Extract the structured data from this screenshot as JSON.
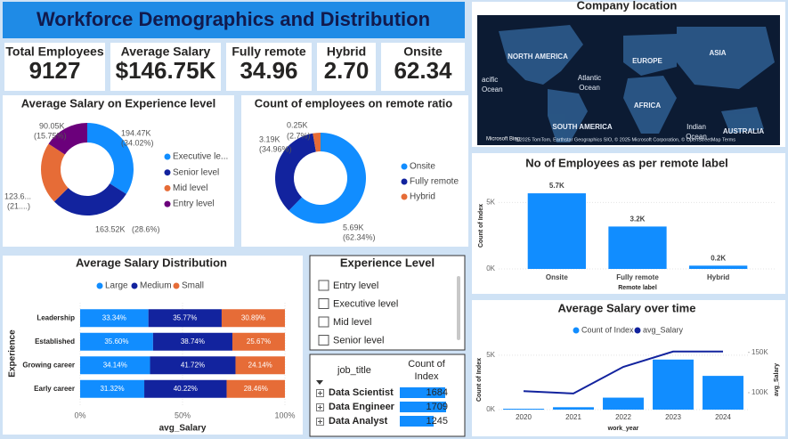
{
  "header": {
    "title": "Workforce Demographics and Distribution"
  },
  "kpis": [
    {
      "label": "Total Employees",
      "value": "9127"
    },
    {
      "label": "Average Salary",
      "value": "$146.75K"
    },
    {
      "label": "Fully remote",
      "value": "34.96"
    },
    {
      "label": "Hybrid",
      "value": "2.70"
    },
    {
      "label": "Onsite",
      "value": "62.34"
    }
  ],
  "map": {
    "title": "Company location",
    "labels": [
      "NORTH AMERICA",
      "EUROPE",
      "ASIA",
      "acific",
      "Ocean",
      "Atlantic",
      "Ocean",
      "AFRICA",
      "SOUTH AMERICA",
      "Indian",
      "Ocean",
      "AUSTRALIA"
    ],
    "attribution": "Microsoft Bing",
    "copyright": "© 2025 TomTom, Earthstar Geographics SIO, © 2025 Microsoft Corporation, © OpenStreetMap  Terms"
  },
  "chart_data": [
    {
      "type": "donut",
      "title": "Average Salary on Experience level",
      "categories": [
        "Executive le...",
        "Senior level",
        "Mid level",
        "Entry level"
      ],
      "values": [
        194.47,
        163.52,
        123.6,
        90.05
      ],
      "value_labels": [
        "194.47K",
        "163.52K",
        "123.6...",
        "90.05K"
      ],
      "percent_labels": [
        "(34.02%)",
        "(28.6%)",
        "(21....)",
        "(15.75%)"
      ],
      "colors": [
        "#118dff",
        "#12239e",
        "#e66c37",
        "#6b007b"
      ]
    },
    {
      "type": "donut",
      "title": "Count of employees on remote ratio",
      "categories": [
        "Onsite",
        "Fully remote",
        "Hybrid"
      ],
      "values": [
        5.69,
        3.19,
        0.25
      ],
      "value_labels": [
        "5.69K",
        "3.19K",
        "0.25K"
      ],
      "percent_labels": [
        "(62.34%)",
        "(34.96%)",
        "(2.7%)"
      ],
      "colors": [
        "#118dff",
        "#12239e",
        "#e66c37"
      ]
    },
    {
      "type": "column",
      "title": "No of Employees as per remote label",
      "categories": [
        "Onsite",
        "Fully remote",
        "Hybrid"
      ],
      "values": [
        5.69,
        3.19,
        0.246
      ],
      "value_labels": [
        "5.7K",
        "3.2K",
        "0.2K"
      ],
      "color": "#118dff",
      "x_label": "Remote label",
      "y_label": "Count of Index",
      "ylim": [
        0,
        6.5
      ],
      "yticks": [
        {
          "value": 0,
          "label": "0K"
        },
        {
          "value": 5,
          "label": "5K"
        }
      ],
      "grid": true
    },
    {
      "type": "stackedbar",
      "title": "Average Salary Distribution",
      "categories": [
        "Leadership",
        "Established",
        "Growing career",
        "Early career"
      ],
      "series": [
        {
          "name": "Large",
          "color": "#118dff",
          "values": [
            33.34,
            35.6,
            34.14,
            31.32
          ],
          "value_labels": [
            "33.34%",
            "35.60%",
            "34.14%",
            "31.32%"
          ]
        },
        {
          "name": "Medium",
          "color": "#12239e",
          "values": [
            35.77,
            38.74,
            41.72,
            40.22
          ],
          "value_labels": [
            "35.77%",
            "38.74%",
            "41.72%",
            "40.22%"
          ]
        },
        {
          "name": "Small",
          "color": "#e66c37",
          "values": [
            30.89,
            25.67,
            24.14,
            28.46
          ],
          "value_labels": [
            "30.89%",
            "25.67%",
            "24.14%",
            "28.46%"
          ]
        }
      ],
      "x_label": "avg_Salary",
      "y_label": "Experience",
      "xlim": [
        0,
        100
      ],
      "xticks": [
        {
          "value": 0,
          "label": "0%"
        },
        {
          "value": 50,
          "label": "50%"
        },
        {
          "value": 100,
          "label": "100%"
        }
      ],
      "grid": true
    },
    {
      "type": "combo",
      "title": "Average Salary over time",
      "categories": [
        "2020",
        "2021",
        "2022",
        "2023",
        "2024"
      ],
      "series": [
        {
          "name": "Count of Index",
          "type": "bar",
          "color": "#118dff",
          "values": [
            0.08,
            0.22,
            1.1,
            4.6,
            3.1
          ]
        },
        {
          "name": "avg_Salary",
          "type": "line",
          "axis": "y2",
          "color": "#12239e",
          "values": [
            102,
            99,
            132,
            151,
            151
          ]
        }
      ],
      "x_label": "work_year",
      "y_label": "Count of Index",
      "y2_label": "avg_Salary",
      "ylim": [
        0,
        6.3
      ],
      "yticks": [
        {
          "value": 0,
          "label": "0K"
        },
        {
          "value": 5,
          "label": "5K"
        }
      ],
      "y2lim": [
        79,
        164
      ],
      "y2ticks": [
        {
          "value": 100,
          "label": "100K"
        },
        {
          "value": 150,
          "label": "150K"
        }
      ]
    }
  ],
  "slicer": {
    "title": "Experience Level",
    "items": [
      "Entry level",
      "Executive level",
      "Mid level",
      "Senior level"
    ]
  },
  "table": {
    "columns": [
      "job_title",
      "Count of Index"
    ],
    "rows": [
      [
        "Data Scientist",
        1684
      ],
      [
        "Data Engineer",
        1709
      ],
      [
        "Data Analyst",
        1245
      ]
    ]
  }
}
